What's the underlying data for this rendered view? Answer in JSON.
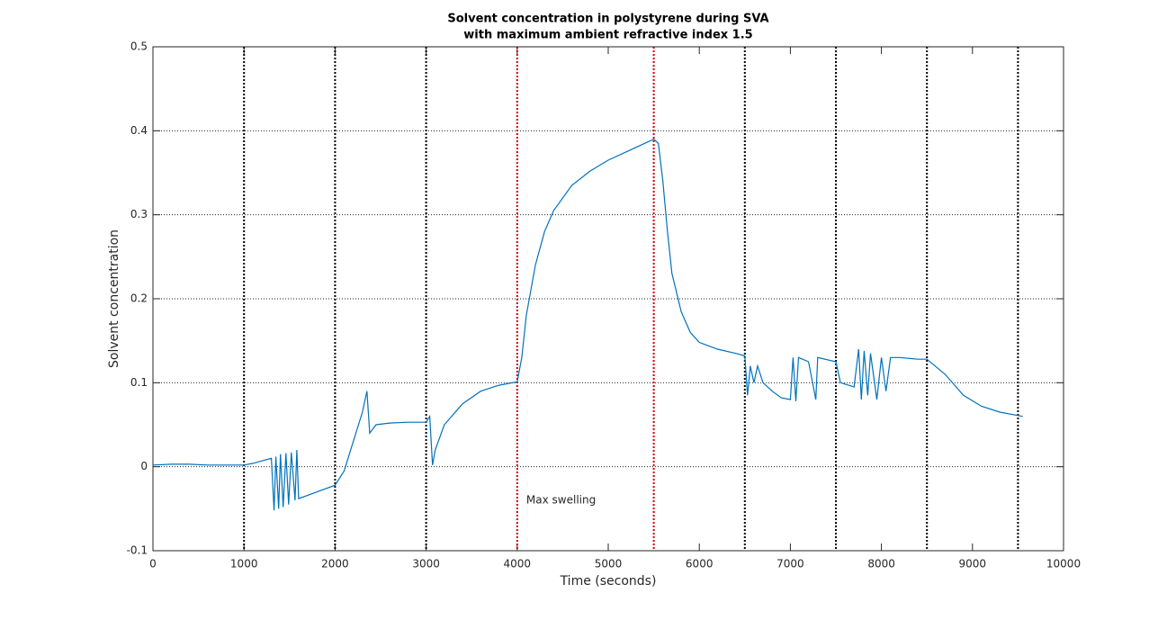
{
  "chart_data": {
    "type": "line",
    "title": [
      "Solvent concentration in polystyrene during SVA",
      "with maximum ambient refractive index 1.5"
    ],
    "xlabel": "Time (seconds)",
    "ylabel": "Solvent concentration",
    "xlim": [
      0,
      10000
    ],
    "ylim": [
      -0.1,
      0.5
    ],
    "xticks": [
      0,
      1000,
      2000,
      3000,
      4000,
      5000,
      6000,
      7000,
      8000,
      9000,
      10000
    ],
    "yticks": [
      -0.1,
      0,
      0.1,
      0.2,
      0.3,
      0.4,
      0.5
    ],
    "grid": "y",
    "x": [
      0,
      200,
      400,
      600,
      800,
      1000,
      1100,
      1200,
      1300,
      1330,
      1350,
      1380,
      1400,
      1430,
      1460,
      1490,
      1520,
      1560,
      1580,
      1600,
      1800,
      2000,
      2100,
      2200,
      2300,
      2350,
      2380,
      2450,
      2600,
      2800,
      3000,
      3040,
      3070,
      3100,
      3200,
      3400,
      3600,
      3800,
      4000,
      4050,
      4100,
      4200,
      4300,
      4400,
      4600,
      4800,
      5000,
      5200,
      5400,
      5500,
      5550,
      5600,
      5650,
      5700,
      5800,
      5900,
      6000,
      6200,
      6400,
      6500,
      6530,
      6560,
      6600,
      6640,
      6700,
      6800,
      6900,
      7000,
      7030,
      7060,
      7090,
      7200,
      7280,
      7300,
      7500,
      7550,
      7700,
      7750,
      7780,
      7810,
      7850,
      7880,
      7950,
      8000,
      8050,
      8100,
      8200,
      8400,
      8500,
      8700,
      8900,
      9100,
      9300,
      9550
    ],
    "series": [
      {
        "color": "#0072bd",
        "values": [
          0.002,
          0.003,
          0.003,
          0.002,
          0.002,
          0.002,
          0.004,
          0.007,
          0.01,
          -0.052,
          0.012,
          -0.05,
          0.015,
          -0.048,
          0.016,
          -0.045,
          0.017,
          -0.04,
          0.02,
          -0.038,
          -0.03,
          -0.022,
          -0.005,
          0.03,
          0.065,
          0.09,
          0.04,
          0.05,
          0.052,
          0.053,
          0.053,
          0.06,
          0.002,
          0.02,
          0.05,
          0.075,
          0.09,
          0.097,
          0.101,
          0.13,
          0.18,
          0.24,
          0.28,
          0.305,
          0.335,
          0.352,
          0.365,
          0.375,
          0.385,
          0.39,
          0.385,
          0.34,
          0.28,
          0.23,
          0.185,
          0.16,
          0.148,
          0.14,
          0.135,
          0.132,
          0.085,
          0.12,
          0.1,
          0.12,
          0.1,
          0.09,
          0.082,
          0.08,
          0.13,
          0.078,
          0.13,
          0.125,
          0.08,
          0.13,
          0.125,
          0.1,
          0.095,
          0.14,
          0.08,
          0.138,
          0.085,
          0.135,
          0.08,
          0.13,
          0.09,
          0.13,
          0.13,
          0.128,
          0.128,
          0.11,
          0.085,
          0.072,
          0.065,
          0.06
        ]
      }
    ],
    "vlines": [
      {
        "x": 1000,
        "color": "#000000"
      },
      {
        "x": 2000,
        "color": "#000000"
      },
      {
        "x": 3000,
        "color": "#000000"
      },
      {
        "x": 4000,
        "color": "#d00000"
      },
      {
        "x": 5500,
        "color": "#d00000"
      },
      {
        "x": 6500,
        "color": "#000000"
      },
      {
        "x": 7500,
        "color": "#000000"
      },
      {
        "x": 8500,
        "color": "#000000"
      },
      {
        "x": 9500,
        "color": "#000000"
      }
    ],
    "annotations": [
      {
        "text": "Max swelling",
        "x": 4100,
        "y": -0.04,
        "color": "#d00000"
      }
    ]
  }
}
